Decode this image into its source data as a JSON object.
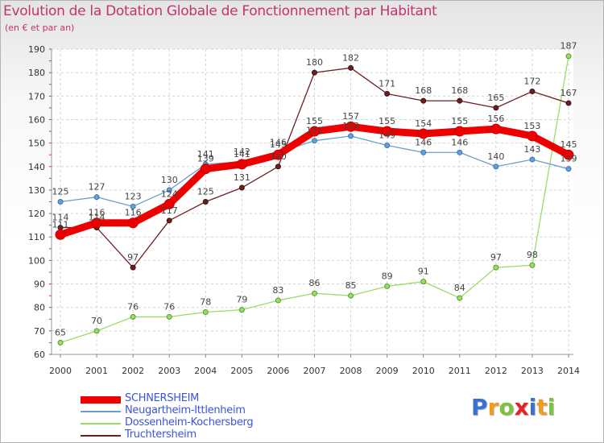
{
  "header": {
    "title": "Evolution de la Dotation Globale de Fonctionnement par Habitant",
    "subtitle": "(en € et par an)"
  },
  "brand": {
    "letters": [
      "P",
      "r",
      "o",
      "x",
      "i",
      "t",
      "i"
    ],
    "colors": [
      "#3a6fd8",
      "#f29b1f",
      "#7fc241",
      "#e2232a",
      "#3a6fd8",
      "#f29b1f",
      "#7fc241"
    ]
  },
  "chart_data": {
    "type": "line",
    "title": "Evolution de la Dotation Globale de Fonctionnement par Habitant",
    "subtitle": "(en € et par an)",
    "x": [
      "2000",
      "2001",
      "2002",
      "2003",
      "2004",
      "2005",
      "2006",
      "2007",
      "2008",
      "2009",
      "2010",
      "2011",
      "2012",
      "2013",
      "2014"
    ],
    "ylim": [
      60,
      190
    ],
    "yticks": [
      60,
      70,
      80,
      90,
      100,
      110,
      120,
      130,
      140,
      150,
      160,
      170,
      180,
      190
    ],
    "grid": true,
    "legend_position": "bottom-left",
    "series": [
      {
        "name": "SCHNERSHEIM",
        "color": "#ee0000",
        "values": [
          111,
          116,
          116,
          124,
          139,
          141,
          145,
          155,
          157,
          155,
          154,
          155,
          156,
          153,
          145
        ]
      },
      {
        "name": "Neugartheim-Ittlenheim",
        "color": "#6aa0cf",
        "values": [
          125,
          127,
          123,
          130,
          141,
          142,
          146,
          151,
          153,
          149,
          146,
          146,
          140,
          143,
          139
        ]
      },
      {
        "name": "Dossenheim-Kochersberg",
        "color": "#99dd66",
        "values": [
          65,
          70,
          76,
          76,
          78,
          79,
          83,
          86,
          85,
          89,
          91,
          84,
          97,
          98,
          187
        ]
      },
      {
        "name": "Truchtersheim",
        "color": "#6b2020",
        "values": [
          114,
          114,
          97,
          117,
          125,
          131,
          140,
          180,
          182,
          171,
          168,
          168,
          165,
          172,
          167
        ]
      }
    ]
  }
}
